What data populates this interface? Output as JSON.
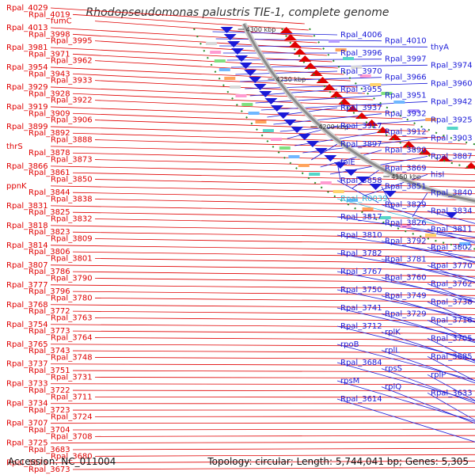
{
  "title": "Rhodopseudomonas palustris TIE-1, complete genome",
  "footer": {
    "accession": "Accession: NC_011004",
    "summary": "Topology: circular; Length: 5,744,041 bp; Genes: 5,305"
  },
  "ticks": [
    "4300 kbp",
    "4250 kbp",
    "4200 kbp",
    "4150 kbp",
    "4100 kbp",
    "4050 kbp",
    "4000 kbp",
    "3950 kbp",
    "3900 kbp",
    "3850 kbp"
  ],
  "left_labels": [
    "Rpal_4029",
    "Rpal_4019",
    "fumC",
    "Rpal_4013",
    "Rpal_3998",
    "Rpal_3995",
    "Rpal_3981",
    "Rpal_3971",
    "Rpal_3962",
    "Rpal_3954",
    "Rpal_3943",
    "Rpal_3933",
    "Rpal_3929",
    "Rpal_3928",
    "Rpal_3922",
    "Rpal_3919",
    "Rpal_3909",
    "Rpal_3906",
    "Rpal_3899",
    "Rpal_3892",
    "Rpal_3888",
    "thrS",
    "Rpal_3878",
    "Rpal_3873",
    "Rpal_3866",
    "Rpal_3861",
    "Rpal_3850",
    "ppnK",
    "Rpal_3844",
    "Rpal_3838",
    "Rpal_3831",
    "Rpal_3825",
    "Rpal_3832",
    "Rpal_3818",
    "Rpal_3823",
    "Rpal_3809",
    "Rpal_3814",
    "Rpal_3806",
    "Rpal_3801",
    "Rpal_3807",
    "Rpal_3786",
    "Rpal_3790",
    "Rpal_3777",
    "Rpal_3796",
    "Rpal_3780",
    "Rpal_3768",
    "Rpal_3772",
    "Rpal_3763",
    "Rpal_3754",
    "Rpal_3773",
    "Rpal_3764",
    "Rpal_3765",
    "Rpal_3743",
    "Rpal_3748",
    "Rpal_3737",
    "Rpal_3751",
    "Rpal_3731",
    "Rpal_3733",
    "Rpal_3722",
    "Rpal_3711",
    "Rpal_3734",
    "Rpal_3723",
    "Rpal_3724",
    "Rpal_3707",
    "Rpal_3704",
    "Rpal_3708",
    "Rpal_3725",
    "Rpal_3683",
    "Rpal_3680",
    "Rpal_3675",
    "Rpal_3673"
  ],
  "right_labels": [
    "Rpal_4006",
    "Rpal_4010",
    "thyA",
    "Rpal_3996",
    "Rpal_3997",
    "Rpal_3974",
    "Rpal_3970",
    "Rpal_3966",
    "Rpal_3960",
    "Rpal_3955",
    "Rpal_3951",
    "Rpal_3942",
    "Rpal_3937",
    "Rpal_3932",
    "Rpal_3925",
    "Rpal_3917",
    "Rpal_3912",
    "Rpal_3903",
    "Rpal_3897",
    "Rpal_3890",
    "Rpal_3887",
    "folE",
    "Rpal_3869",
    "hisI",
    "Rpal_3858",
    "Rpal_3851",
    "Rpal_3840",
    "Rpal_R0039",
    "Rpal_3829",
    "Rpal_3834",
    "Rpal_3817",
    "Rpal_3826",
    "Rpal_3811",
    "Rpal_3810",
    "Rpal_3792",
    "Rpal_3802",
    "Rpal_3782",
    "Rpal_3781",
    "Rpal_3770",
    "Rpal_3767",
    "Rpal_3760",
    "Rpal_3762",
    "Rpal_3750",
    "Rpal_3749",
    "Rpal_3738",
    "Rpal_3741",
    "Rpal_3729",
    "Rpal_3716",
    "Rpal_3712",
    "rplK",
    "Rpal_3705",
    "rpoB",
    "rplL",
    "Rpal_3685",
    "Rpal_3684",
    "rpsS",
    "rplP",
    "rpsM",
    "rplQ",
    "Rpal_3633",
    "Rpal_3614"
  ],
  "colors": {
    "forward": "#e00000",
    "reverse": "#1a1ad8",
    "rna": "#33bbdd",
    "backbone": "#8a8a8a",
    "tick": "#2a8a2a",
    "text": "#333333"
  }
}
